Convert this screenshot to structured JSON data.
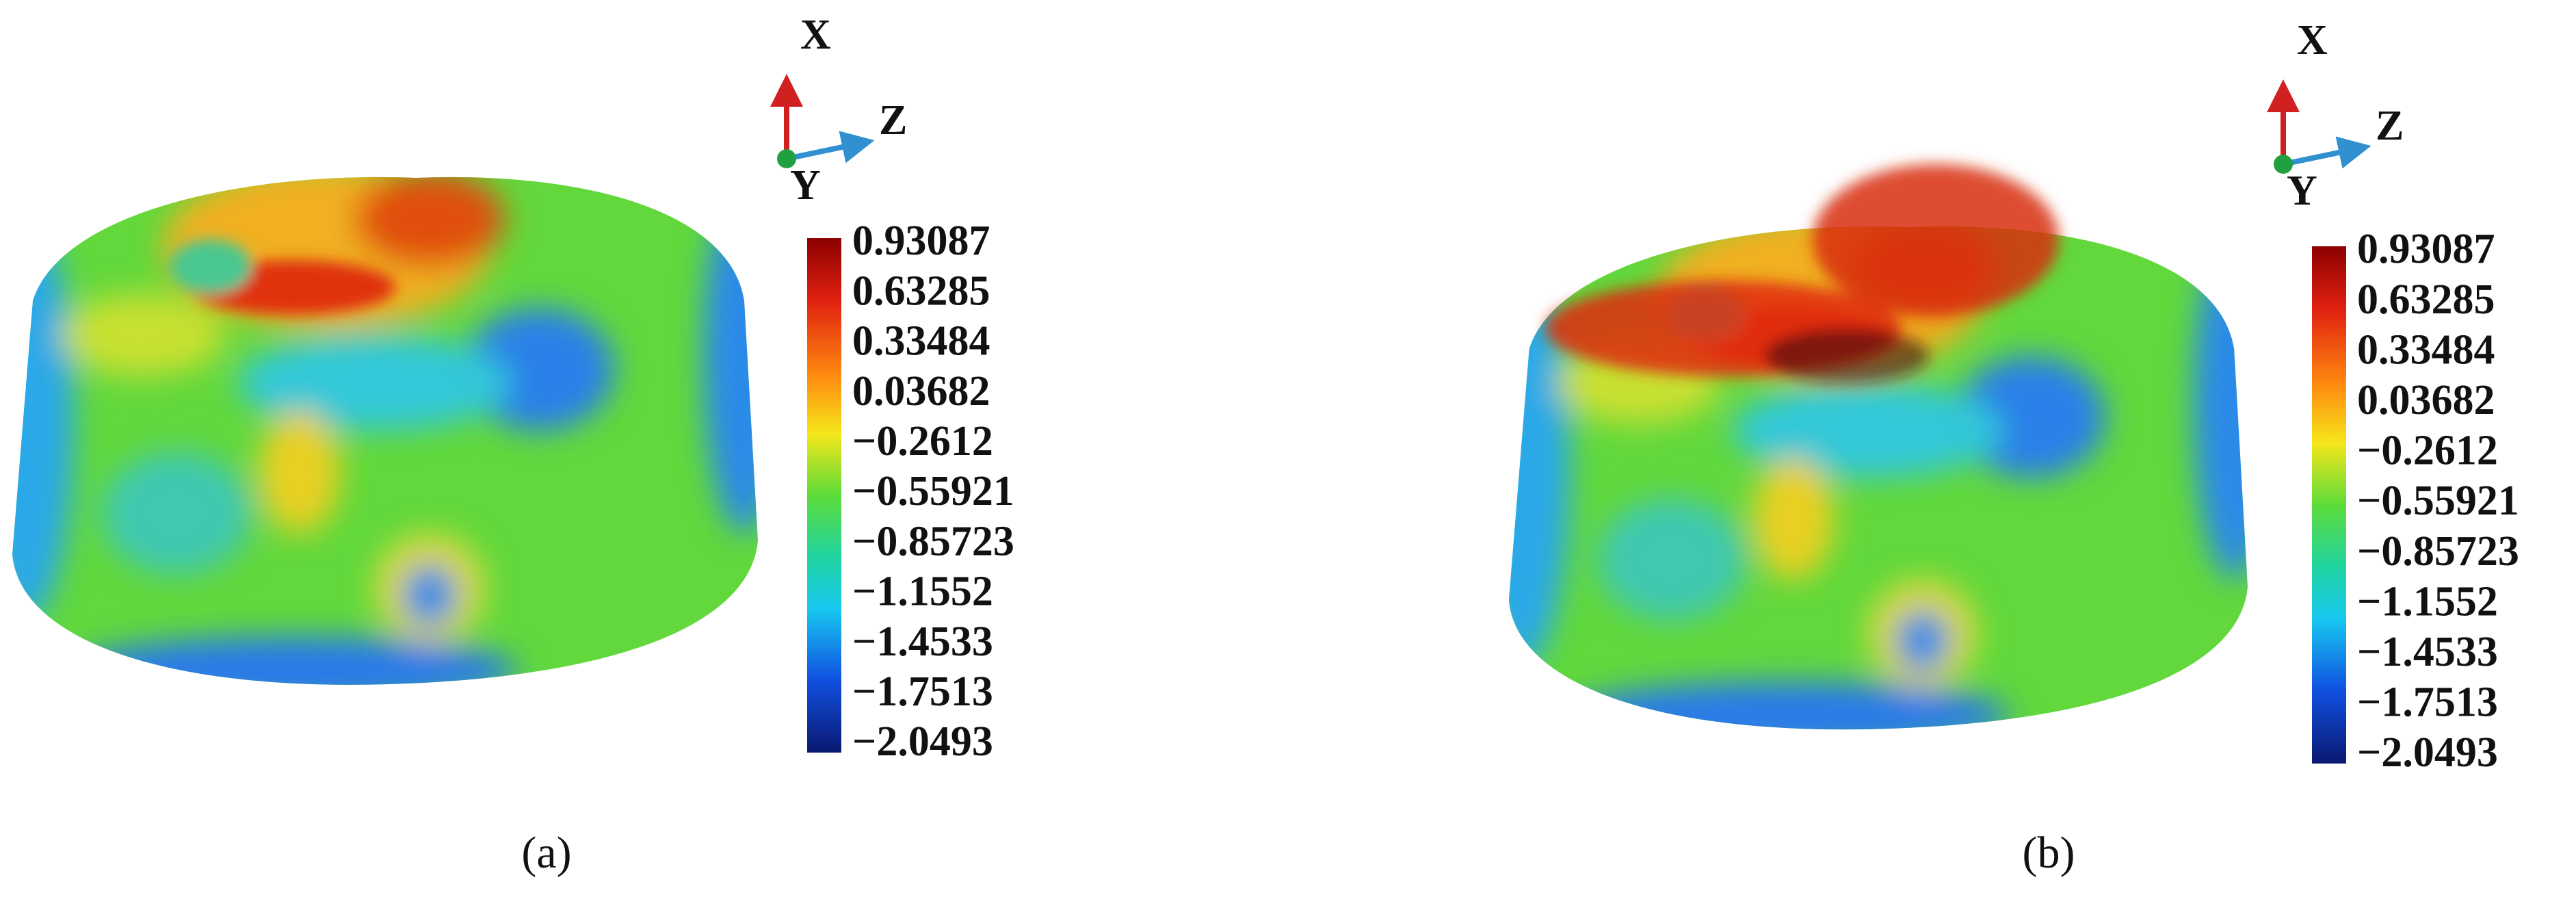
{
  "panels": [
    {
      "axes": {
        "x": "X",
        "z": "Z",
        "y": "Y"
      },
      "colorbar": [
        "0.93087",
        "0.63285",
        "0.33484",
        "0.03682",
        "−0.2612",
        "−0.55921",
        "−0.85723",
        "−1.1552",
        "−1.4533",
        "−1.7513",
        "−2.0493"
      ],
      "caption": "(a)"
    },
    {
      "axes": {
        "x": "X",
        "z": "Z",
        "y": "Y"
      },
      "colorbar": [
        "0.93087",
        "0.63285",
        "0.33484",
        "0.03682",
        "−0.2612",
        "−0.55921",
        "−0.85723",
        "−1.1552",
        "−1.4533",
        "−1.7513",
        "−2.0493"
      ],
      "caption": "(b)"
    }
  ]
}
